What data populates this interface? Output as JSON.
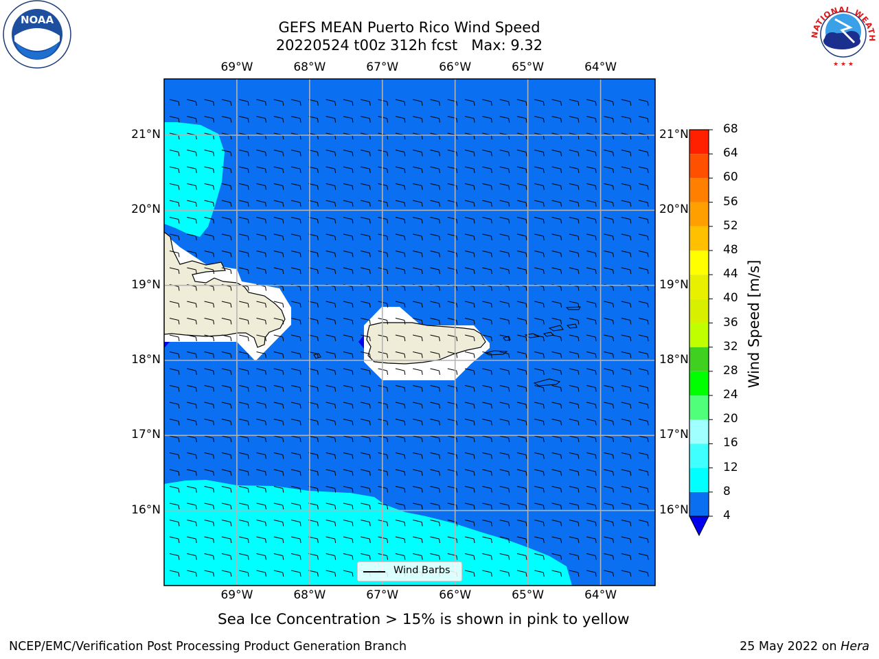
{
  "title": {
    "line1": "GEFS MEAN Puerto Rico Wind Speed",
    "line2": "20220524 t00z 312h fcst   Max: 9.32"
  },
  "map": {
    "lon_labels": [
      "69°W",
      "68°W",
      "67°W",
      "66°W",
      "65°W",
      "64°W"
    ],
    "lat_labels": [
      "21°N",
      "20°N",
      "19°N",
      "18°N",
      "17°N",
      "16°N"
    ],
    "extent": {
      "lon_min": -70.0,
      "lon_max": -63.25,
      "lat_min": 15.0,
      "lat_max": 21.75
    },
    "features": [
      "Hispaniola (eastern)",
      "Mona Island",
      "Puerto Rico",
      "Culebra",
      "Vieques",
      "St. Thomas",
      "St. John",
      "St. Croix"
    ],
    "legend_label": "Wind Barbs"
  },
  "colorbar": {
    "label": "Wind Speed [m/s]",
    "ticks": [
      "68",
      "64",
      "60",
      "56",
      "52",
      "48",
      "44",
      "40",
      "36",
      "32",
      "28",
      "24",
      "20",
      "16",
      "12",
      "8",
      "4"
    ],
    "bins": [
      {
        "from": 4,
        "to": 8,
        "color": "#0a6ff0"
      },
      {
        "from": 8,
        "to": 12,
        "color": "#00ffff"
      },
      {
        "from": 12,
        "to": 16,
        "color": "#40ffff"
      },
      {
        "from": 16,
        "to": 20,
        "color": "#a0ffff"
      },
      {
        "from": 20,
        "to": 24,
        "color": "#50ff7a"
      },
      {
        "from": 24,
        "to": 28,
        "color": "#00ff00"
      },
      {
        "from": 28,
        "to": 32,
        "color": "#40d020"
      },
      {
        "from": 32,
        "to": 36,
        "color": "#c0ff00"
      },
      {
        "from": 36,
        "to": 40,
        "color": "#d8f000"
      },
      {
        "from": 40,
        "to": 44,
        "color": "#e8f000"
      },
      {
        "from": 44,
        "to": 48,
        "color": "#ffff00"
      },
      {
        "from": 48,
        "to": 52,
        "color": "#ffc000"
      },
      {
        "from": 52,
        "to": 56,
        "color": "#ffa000"
      },
      {
        "from": 56,
        "to": 60,
        "color": "#ff8000"
      },
      {
        "from": 60,
        "to": 64,
        "color": "#ff5000"
      },
      {
        "from": 64,
        "to": 68,
        "color": "#ff2000"
      }
    ],
    "underflow_color": "#0000ee"
  },
  "colors": {
    "ocean_low": "#0a6ff0",
    "ocean_mid": "#00ffff",
    "land": "#efedd8",
    "grid": "#b4b4b4"
  },
  "note": "Sea Ice Concentration > 15% is shown in pink to yellow",
  "footer": {
    "left": "NCEP/EMC/Verification Post Processing Product Generation Branch",
    "right_date": "25 May 2022 on",
    "right_machine": "Hera"
  },
  "logos": {
    "left": "noaa-logo",
    "left_text": "NOAA",
    "right": "national-weather-service-logo",
    "right_text": "NATIONAL WEATHER SERVICE"
  }
}
